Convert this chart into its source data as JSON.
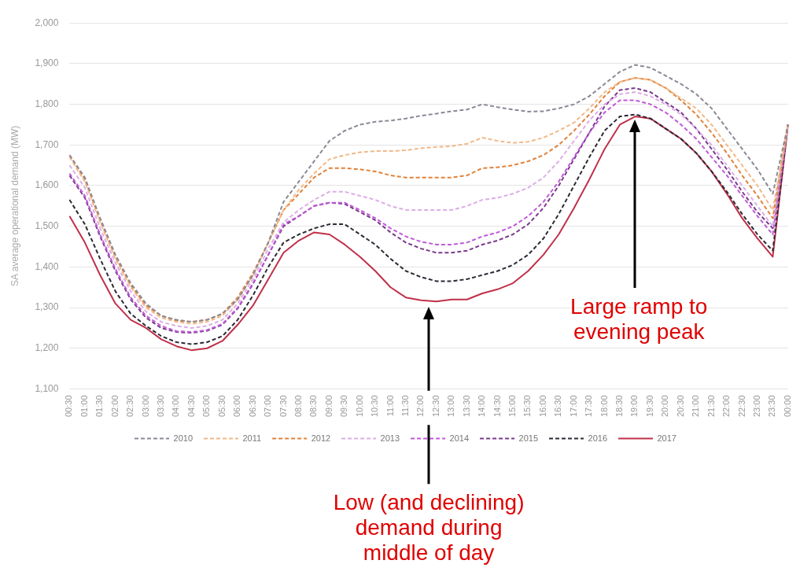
{
  "chart_data": {
    "type": "line",
    "ylabel": "SA average operational demand (MW)",
    "categories": [
      "00:30",
      "01:00",
      "01:30",
      "02:00",
      "02:30",
      "03:00",
      "03:30",
      "04:00",
      "04:30",
      "05:00",
      "05:30",
      "06:00",
      "06:30",
      "07:00",
      "07:30",
      "08:00",
      "08:30",
      "09:00",
      "09:30",
      "10:00",
      "10:30",
      "11:00",
      "11:30",
      "12:00",
      "12:30",
      "13:00",
      "13:30",
      "14:00",
      "14:30",
      "15:00",
      "15:30",
      "16:00",
      "16:30",
      "17:00",
      "17:30",
      "18:00",
      "18:30",
      "19:00",
      "19:30",
      "20:00",
      "20:30",
      "21:00",
      "21:30",
      "22:00",
      "22:30",
      "23:00",
      "23:30",
      "00:00"
    ],
    "ylim": [
      1100,
      2000
    ],
    "yticks": [
      {
        "value": 1100,
        "label": "1,100"
      },
      {
        "value": 1200,
        "label": "1,200"
      },
      {
        "value": 1300,
        "label": "1,300"
      },
      {
        "value": 1400,
        "label": "1,400"
      },
      {
        "value": 1500,
        "label": "1,500"
      },
      {
        "value": 1600,
        "label": "1,600"
      },
      {
        "value": 1700,
        "label": "1,700"
      },
      {
        "value": 1800,
        "label": "1,800"
      },
      {
        "value": 1900,
        "label": "1,900"
      },
      {
        "value": 2000,
        "label": "2,000"
      }
    ],
    "grid": "y",
    "legend": "bottom",
    "marker": "none",
    "series": [
      {
        "name": "2010",
        "color": "#8a8a96",
        "line_style": "dashed",
        "values": [
          1675,
          1620,
          1520,
          1430,
          1360,
          1310,
          1280,
          1270,
          1265,
          1270,
          1285,
          1320,
          1380,
          1460,
          1560,
          1610,
          1660,
          1710,
          1735,
          1750,
          1757,
          1760,
          1765,
          1772,
          1777,
          1783,
          1787,
          1800,
          1793,
          1787,
          1782,
          1783,
          1790,
          1800,
          1820,
          1850,
          1880,
          1897,
          1890,
          1870,
          1850,
          1825,
          1790,
          1740,
          1690,
          1640,
          1580,
          1750
        ]
      },
      {
        "name": "2011",
        "color": "#f2b888",
        "line_style": "dashed",
        "values": [
          1670,
          1610,
          1510,
          1420,
          1350,
          1300,
          1275,
          1265,
          1260,
          1265,
          1280,
          1320,
          1380,
          1460,
          1540,
          1590,
          1630,
          1665,
          1675,
          1682,
          1685,
          1685,
          1687,
          1692,
          1695,
          1697,
          1703,
          1718,
          1710,
          1705,
          1708,
          1718,
          1735,
          1755,
          1790,
          1830,
          1855,
          1865,
          1860,
          1840,
          1815,
          1790,
          1750,
          1700,
          1650,
          1600,
          1540,
          1750
        ]
      },
      {
        "name": "2012",
        "color": "#e0823a",
        "line_style": "dashed",
        "values": [
          1675,
          1615,
          1515,
          1425,
          1355,
          1305,
          1280,
          1268,
          1265,
          1270,
          1285,
          1325,
          1385,
          1460,
          1540,
          1580,
          1620,
          1643,
          1643,
          1640,
          1635,
          1625,
          1620,
          1620,
          1620,
          1620,
          1625,
          1643,
          1645,
          1650,
          1660,
          1675,
          1700,
          1735,
          1775,
          1820,
          1855,
          1865,
          1860,
          1840,
          1810,
          1775,
          1730,
          1680,
          1625,
          1575,
          1520,
          1750
        ]
      },
      {
        "name": "2013",
        "color": "#dcaee6",
        "line_style": "dashed",
        "values": [
          1650,
          1595,
          1495,
          1410,
          1340,
          1290,
          1265,
          1255,
          1250,
          1255,
          1270,
          1310,
          1370,
          1445,
          1510,
          1540,
          1565,
          1585,
          1585,
          1575,
          1565,
          1550,
          1540,
          1540,
          1540,
          1540,
          1550,
          1565,
          1570,
          1580,
          1595,
          1620,
          1660,
          1710,
          1760,
          1800,
          1825,
          1830,
          1820,
          1800,
          1775,
          1740,
          1700,
          1650,
          1600,
          1550,
          1500,
          1750
        ]
      },
      {
        "name": "2014",
        "color": "#c05ad8",
        "line_style": "dashed",
        "values": [
          1630,
          1575,
          1480,
          1395,
          1325,
          1280,
          1255,
          1242,
          1240,
          1245,
          1260,
          1300,
          1360,
          1430,
          1505,
          1525,
          1550,
          1558,
          1558,
          1540,
          1520,
          1495,
          1475,
          1462,
          1455,
          1455,
          1460,
          1475,
          1485,
          1500,
          1525,
          1560,
          1610,
          1670,
          1730,
          1780,
          1810,
          1810,
          1800,
          1780,
          1750,
          1715,
          1670,
          1625,
          1575,
          1525,
          1480,
          1750
        ]
      },
      {
        "name": "2015",
        "color": "#7a3a8c",
        "line_style": "dashed",
        "values": [
          1625,
          1570,
          1475,
          1390,
          1320,
          1275,
          1250,
          1240,
          1238,
          1243,
          1258,
          1298,
          1358,
          1430,
          1500,
          1525,
          1550,
          1558,
          1555,
          1535,
          1515,
          1485,
          1460,
          1445,
          1435,
          1435,
          1440,
          1455,
          1465,
          1480,
          1505,
          1545,
          1600,
          1665,
          1730,
          1795,
          1835,
          1840,
          1830,
          1805,
          1780,
          1740,
          1690,
          1640,
          1585,
          1535,
          1495,
          1750
        ]
      },
      {
        "name": "2016",
        "color": "#2a2a34",
        "line_style": "dashed",
        "values": [
          1565,
          1505,
          1420,
          1340,
          1285,
          1255,
          1230,
          1215,
          1210,
          1215,
          1230,
          1270,
          1330,
          1400,
          1460,
          1480,
          1495,
          1505,
          1505,
          1480,
          1455,
          1420,
          1390,
          1375,
          1365,
          1365,
          1370,
          1380,
          1390,
          1405,
          1430,
          1470,
          1530,
          1600,
          1670,
          1735,
          1770,
          1775,
          1765,
          1740,
          1715,
          1680,
          1635,
          1585,
          1530,
          1480,
          1440,
          1750
        ]
      },
      {
        "name": "2017",
        "color": "#c0304a",
        "line_style": "solid",
        "values": [
          1525,
          1460,
          1380,
          1310,
          1270,
          1250,
          1222,
          1205,
          1195,
          1200,
          1218,
          1258,
          1305,
          1370,
          1435,
          1465,
          1485,
          1480,
          1455,
          1425,
          1390,
          1350,
          1325,
          1318,
          1315,
          1320,
          1320,
          1335,
          1345,
          1360,
          1390,
          1430,
          1480,
          1545,
          1615,
          1690,
          1750,
          1770,
          1765,
          1740,
          1715,
          1680,
          1635,
          1580,
          1520,
          1470,
          1425,
          1750
        ]
      }
    ],
    "annotations": [
      "Large ramp to evening peak",
      "Low (and declining) demand during middle of day"
    ]
  }
}
